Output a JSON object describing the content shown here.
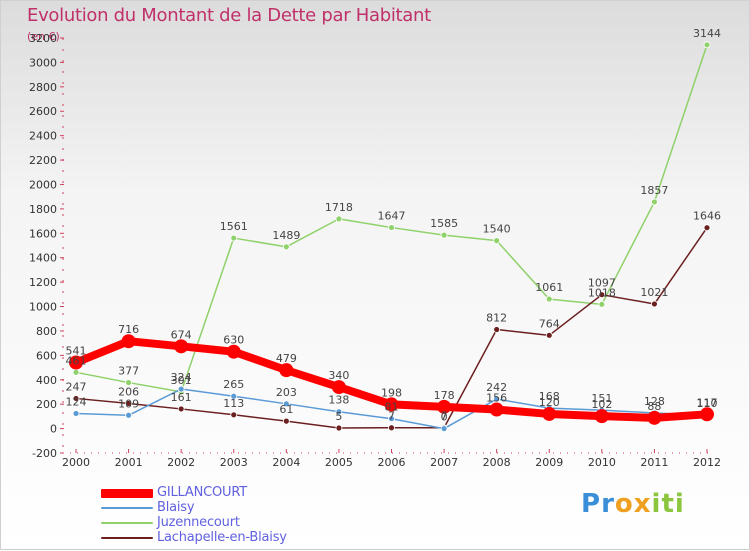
{
  "chart_data": {
    "type": "line",
    "title": "Evolution du Montant de la Dette par Habitant",
    "subtitle": "(en €)",
    "x": [
      "2000",
      "2001",
      "2002",
      "2003",
      "2004",
      "2005",
      "2006",
      "2007",
      "2008",
      "2009",
      "2010",
      "2011",
      "2012"
    ],
    "ylim": [
      -200,
      3200
    ],
    "yticks": [
      -200,
      0,
      200,
      400,
      600,
      800,
      1000,
      1200,
      1400,
      1600,
      1800,
      2000,
      2200,
      2400,
      2600,
      2800,
      3000,
      3200
    ],
    "grid": false,
    "legend_position": "bottom-left",
    "series": [
      {
        "name": "GILLANCOURT",
        "color": "#ff0000",
        "values": [
          541,
          716,
          674,
          630,
          479,
          340,
          198,
          178,
          156,
          120,
          102,
          88,
          117
        ],
        "labels": [
          "541",
          "716",
          "674",
          "630",
          "479",
          "340",
          "198",
          "178",
          "156",
          "120",
          "102",
          "88",
          "117"
        ]
      },
      {
        "name": "Blaisy",
        "color": "#5b9bd5",
        "values": [
          124,
          109,
          324,
          265,
          203,
          138,
          81,
          0,
          242,
          168,
          151,
          128,
          110
        ],
        "labels": [
          "124",
          "109",
          "324",
          "265",
          "203",
          "138",
          "81",
          "0",
          "242",
          "168",
          "151",
          "128",
          "110"
        ]
      },
      {
        "name": "Juzennecourt",
        "color": "#8fd16a",
        "values": [
          461,
          377,
          301,
          1561,
          1489,
          1718,
          1647,
          1585,
          1540,
          1061,
          1018,
          1857,
          3144
        ],
        "labels": [
          "461",
          "377",
          "301",
          "1561",
          "1489",
          "1718",
          "1647",
          "1585",
          "1540",
          "1061",
          "1018",
          "1857",
          "3144"
        ]
      },
      {
        "name": "Lachapelle-en-Blaisy",
        "color": "#6b1f1f",
        "values": [
          247,
          206,
          161,
          113,
          61,
          5,
          7,
          7,
          812,
          764,
          1097,
          1021,
          1646
        ],
        "labels": [
          "247",
          "206",
          "161",
          "113",
          "61",
          "5",
          "7",
          "7",
          "812",
          "764",
          "1097",
          "1021",
          "1646"
        ]
      }
    ]
  },
  "logo": {
    "letters": [
      "P",
      "r",
      "o",
      "x",
      "i",
      "t",
      "i"
    ],
    "colors": [
      "#3a8fd8",
      "#3a8fd8",
      "#f0a020",
      "#f0a020",
      "#8cc63f",
      "#8cc63f",
      "#8cc63f"
    ]
  }
}
